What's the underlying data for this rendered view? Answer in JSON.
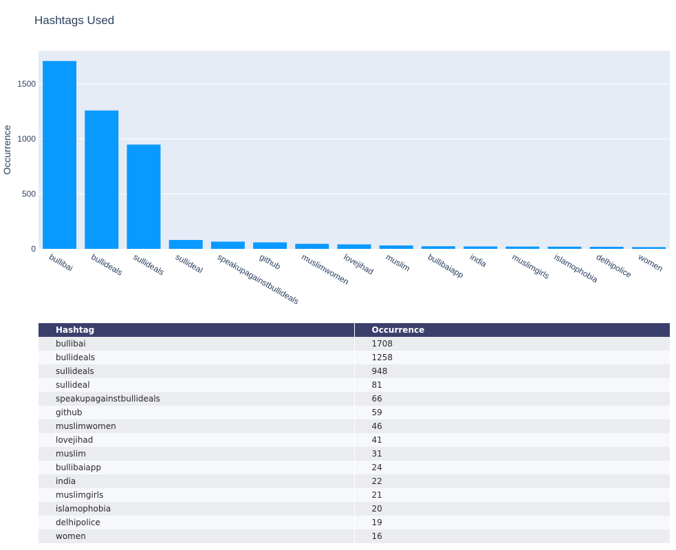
{
  "chart_data": [
    {
      "type": "bar",
      "title": "Hashtags Used",
      "xlabel": "",
      "ylabel": "Occurrence",
      "ylim": [
        0,
        1800
      ],
      "yticks": [
        0,
        500,
        1000,
        1500
      ],
      "grid": true,
      "bar_color": "#0a99ff",
      "plot_bg": "#e5ecf6",
      "categories": [
        "bullibai",
        "bullideals",
        "sullideals",
        "sullideal",
        "speakupagainstbullideals",
        "github",
        "muslimwomen",
        "lovejihad",
        "muslim",
        "bullibaiapp",
        "india",
        "muslimgirls",
        "islamophobia",
        "delhipolice",
        "women"
      ],
      "values": [
        1708,
        1258,
        948,
        81,
        66,
        59,
        46,
        41,
        31,
        24,
        22,
        21,
        20,
        19,
        16
      ]
    },
    {
      "type": "table",
      "columns": [
        "Hashtag",
        "Occurrence"
      ],
      "header_color": "#3b3f6b",
      "rows": [
        [
          "bullibai",
          "1708"
        ],
        [
          "bullideals",
          "1258"
        ],
        [
          "sullideals",
          "948"
        ],
        [
          "sullideal",
          "81"
        ],
        [
          "speakupagainstbullideals",
          "66"
        ],
        [
          "github",
          "59"
        ],
        [
          "muslimwomen",
          "46"
        ],
        [
          "lovejihad",
          "41"
        ],
        [
          "muslim",
          "31"
        ],
        [
          "bullibaiapp",
          "24"
        ],
        [
          "india",
          "22"
        ],
        [
          "muslimgirls",
          "21"
        ],
        [
          "islamophobia",
          "20"
        ],
        [
          "delhipolice",
          "19"
        ],
        [
          "women",
          "16"
        ]
      ]
    }
  ]
}
